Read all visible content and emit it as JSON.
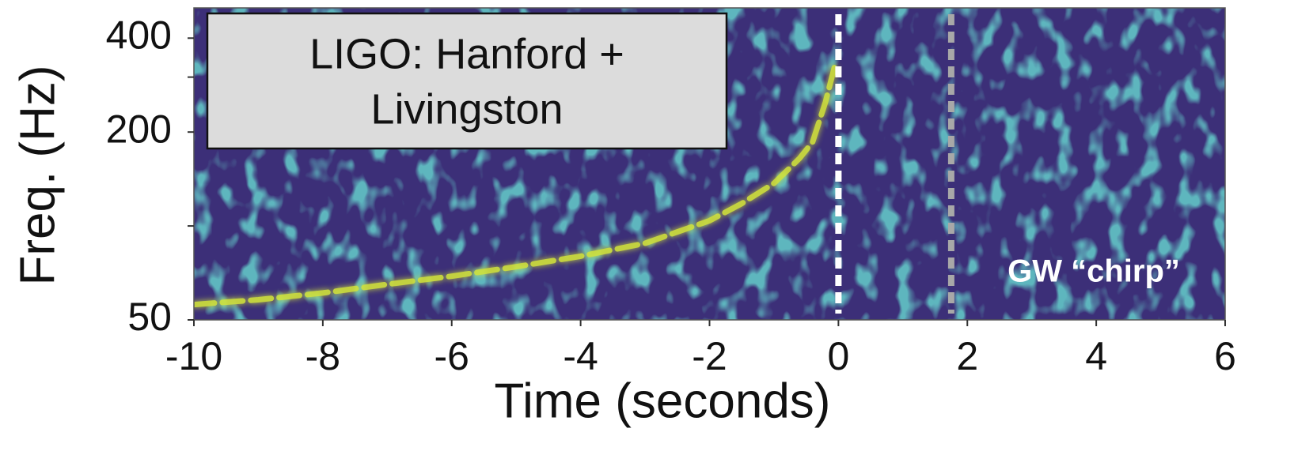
{
  "chart_data": {
    "type": "spectrogram",
    "xlabel": "Time (seconds)",
    "ylabel": "Freq. (Hz)",
    "xlim": [
      -10,
      6
    ],
    "xticks": [
      -10,
      -8,
      -6,
      -4,
      -2,
      0,
      2,
      4,
      6
    ],
    "ylim": [
      50,
      500
    ],
    "ylog": true,
    "yticks": [
      50,
      200,
      400
    ],
    "yminor_ticks": [
      100,
      300
    ],
    "chirp": {
      "color": "#d2e33a",
      "x": [
        -10,
        -9,
        -8,
        -7,
        -6,
        -5,
        -4,
        -3,
        -2,
        -1.5,
        -1,
        -0.6,
        -0.4,
        -0.2,
        -0.05
      ],
      "y": [
        56,
        58,
        61,
        65,
        69,
        74,
        80,
        88,
        104,
        118,
        137,
        165,
        186,
        250,
        330
      ]
    },
    "vlines": [
      {
        "x": 0,
        "color": "#ffffff"
      },
      {
        "x": 1.75,
        "color": "#a8a8a8"
      }
    ],
    "box_lines": [
      "LIGO: Hanford +",
      "Livingston"
    ],
    "annotation": "GW “chirp”"
  }
}
